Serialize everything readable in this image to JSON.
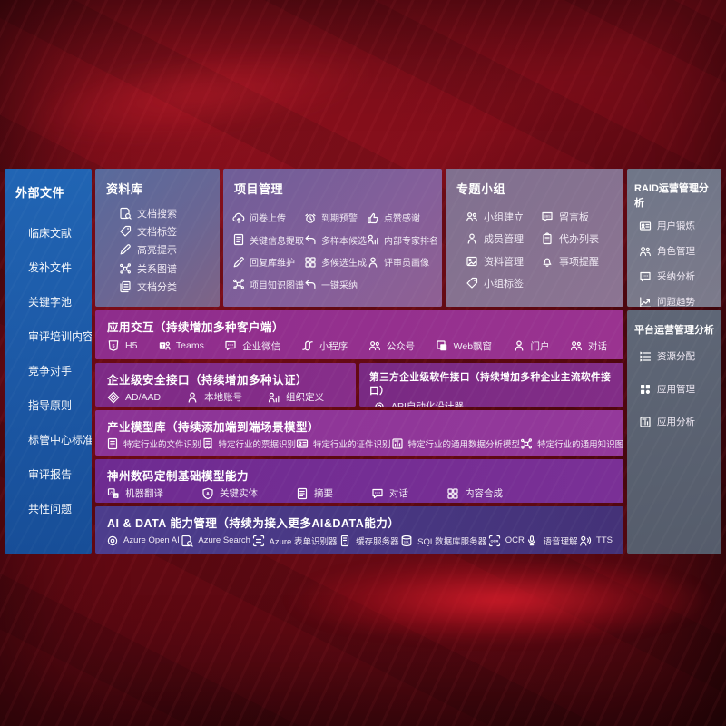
{
  "colors": {
    "background_red": "#7c0d19",
    "sidebar_blue": "#1e5fae",
    "panel_magenta": "#943190",
    "panel_purple": "#7d2a86",
    "panel_indigo": "#483786",
    "panel_slate": "#6f7688"
  },
  "sidebar": {
    "title": "外部文件",
    "items": [
      {
        "name": "clinical-literature",
        "label": "临床文献"
      },
      {
        "name": "supplement-files",
        "label": "发补文件"
      },
      {
        "name": "keyword-pool",
        "label": "关键字池"
      },
      {
        "name": "review-training-content",
        "label": "审评培训内容"
      },
      {
        "name": "competitors",
        "label": "竞争对手"
      },
      {
        "name": "guidelines",
        "label": "指导原则"
      },
      {
        "name": "standards-center-standards",
        "label": "标管中心标准"
      },
      {
        "name": "review-reports",
        "label": "审评报告"
      },
      {
        "name": "common-issues",
        "label": "共性问题"
      }
    ]
  },
  "library": {
    "title": "资料库",
    "items": [
      {
        "name": "doc-search",
        "icon": "doc-search",
        "label": "文档搜索"
      },
      {
        "name": "doc-tags",
        "icon": "tag",
        "label": "文档标签"
      },
      {
        "name": "highlight-hint",
        "icon": "pen",
        "label": "高亮提示"
      },
      {
        "name": "relation-graph",
        "icon": "network",
        "label": "关系图谱"
      },
      {
        "name": "doc-classification",
        "icon": "docs",
        "label": "文档分类"
      }
    ]
  },
  "project": {
    "title": "项目管理",
    "items": [
      {
        "name": "questionnaire-upload",
        "icon": "cloud-up",
        "label": "问卷上传"
      },
      {
        "name": "expiry-alert",
        "icon": "alarm",
        "label": "到期预警"
      },
      {
        "name": "like-thanks",
        "icon": "thumb",
        "label": "点赞感谢"
      },
      {
        "name": "key-info-extraction",
        "icon": "doc",
        "label": "关键信息提取"
      },
      {
        "name": "multi-sample-candidates",
        "icon": "reply",
        "label": "多样本候选"
      },
      {
        "name": "internal-expert-ranking",
        "icon": "rank",
        "label": "内部专家排名"
      },
      {
        "name": "reply-library-maintenance",
        "icon": "pen",
        "label": "回复库维护"
      },
      {
        "name": "multi-candidate-generation",
        "icon": "grid",
        "label": "多候选生成"
      },
      {
        "name": "reviewer-profile",
        "icon": "person",
        "label": "评审员画像"
      },
      {
        "name": "project-knowledge-graph",
        "icon": "network",
        "label": "项目知识图谱"
      },
      {
        "name": "one-click-adoption",
        "icon": "reply",
        "label": "一键采纳"
      }
    ]
  },
  "topic_group": {
    "title": "专题小组",
    "items": [
      {
        "name": "group-creation",
        "icon": "people",
        "label": "小组建立"
      },
      {
        "name": "message-board",
        "icon": "bbs",
        "label": "留言板"
      },
      {
        "name": "member-management",
        "icon": "person",
        "label": "成员管理"
      },
      {
        "name": "todo-list",
        "icon": "clipboard",
        "label": "代办列表"
      },
      {
        "name": "material-management",
        "icon": "image",
        "label": "资料管理"
      },
      {
        "name": "event-reminder",
        "icon": "bell",
        "label": "事项提醒"
      },
      {
        "name": "group-tags",
        "icon": "tag",
        "label": "小组标签"
      }
    ]
  },
  "raid": {
    "title": "RAID运营管理分析",
    "items": [
      {
        "name": "user-training",
        "icon": "idcard",
        "label": "用户锻炼"
      },
      {
        "name": "role-management",
        "icon": "people",
        "label": "角色管理"
      },
      {
        "name": "adoption-analysis",
        "icon": "chat",
        "label": "采纳分析"
      },
      {
        "name": "issue-trends",
        "icon": "trend",
        "label": "问题趋势"
      }
    ]
  },
  "platform": {
    "title": "平台运营管理分析",
    "items": [
      {
        "name": "resource-allocation",
        "icon": "list",
        "label": "资源分配"
      },
      {
        "name": "app-management",
        "icon": "apps",
        "label": "应用管理"
      },
      {
        "name": "app-analysis",
        "icon": "appchart",
        "label": "应用分析"
      }
    ]
  },
  "interaction": {
    "title": "应用交互（持续增加多种客户端）",
    "items": [
      {
        "name": "h5-client",
        "icon": "h5",
        "label": "H5"
      },
      {
        "name": "teams-client",
        "icon": "teams",
        "label": "Teams"
      },
      {
        "name": "wecom-client",
        "icon": "chat",
        "label": "企业微信"
      },
      {
        "name": "mini-program-client",
        "icon": "miniprog",
        "label": "小程序"
      },
      {
        "name": "official-account-client",
        "icon": "people",
        "label": "公众号"
      },
      {
        "name": "web-popup-client",
        "icon": "window",
        "label": "Web飘窗"
      },
      {
        "name": "portal-client",
        "icon": "person",
        "label": "门户"
      },
      {
        "name": "dialog-client",
        "icon": "people",
        "label": "对话"
      }
    ]
  },
  "security": {
    "title": "企业级安全接口（持续增加多种认证）",
    "items": [
      {
        "name": "ad-aad-auth",
        "icon": "diamond",
        "label": "AD/AAD"
      },
      {
        "name": "local-account-auth",
        "icon": "person",
        "label": "本地账号"
      },
      {
        "name": "org-definition-auth",
        "icon": "rank",
        "label": "组织定义"
      }
    ]
  },
  "third_party": {
    "title": "第三方企业级软件接口（持续增加多种企业主流软件接口）",
    "items": [
      {
        "name": "api-auto-designer",
        "icon": "gear",
        "label": "API自动化设计器"
      }
    ]
  },
  "industry_models": {
    "title": "产业模型库（持续添加端到端场景模型）",
    "items": [
      {
        "name": "industry-file-recognition",
        "icon": "doc",
        "label": "特定行业的文件识别"
      },
      {
        "name": "industry-receipt-recognition",
        "icon": "receipt",
        "label": "特定行业的票据识别"
      },
      {
        "name": "industry-id-recognition",
        "icon": "idcard",
        "label": "特定行业的证件识别"
      },
      {
        "name": "industry-data-analysis-model",
        "icon": "appchart",
        "label": "特定行业的通用数据分析模型"
      },
      {
        "name": "industry-knowledge-graph-model",
        "icon": "network",
        "label": "特定行业的通用知识图谱模型"
      }
    ]
  },
  "dc_models": {
    "title": "神州数码定制基础模型能力",
    "items": [
      {
        "name": "machine-translation",
        "icon": "translate",
        "label": "机器翻译"
      },
      {
        "name": "key-entities",
        "icon": "shield",
        "label": "关键实体"
      },
      {
        "name": "summary",
        "icon": "doc",
        "label": "摘要"
      },
      {
        "name": "dialogue",
        "icon": "chat",
        "label": "对话"
      },
      {
        "name": "content-synthesis",
        "icon": "grid",
        "label": "内容合成"
      }
    ]
  },
  "ai_data": {
    "title": "AI & DATA 能力管理（持续为接入更多AI&DATA能力）",
    "items": [
      {
        "name": "azure-openai",
        "icon": "openai",
        "label": "Azure Open AI"
      },
      {
        "name": "azure-search",
        "icon": "doc-search",
        "label": "Azure Search"
      },
      {
        "name": "azure-form-recognizer",
        "icon": "scan",
        "label": "Azure 表单识别器"
      },
      {
        "name": "cache-server",
        "icon": "server",
        "label": "缓存服务器"
      },
      {
        "name": "sql-db-server",
        "icon": "db",
        "label": "SQL数据库服务器"
      },
      {
        "name": "ocr-capability",
        "icon": "ocr",
        "label": "OCR"
      },
      {
        "name": "speech-understanding",
        "icon": "mic",
        "label": "语音理解"
      },
      {
        "name": "tts-capability",
        "icon": "tts",
        "label": "TTS"
      }
    ]
  }
}
